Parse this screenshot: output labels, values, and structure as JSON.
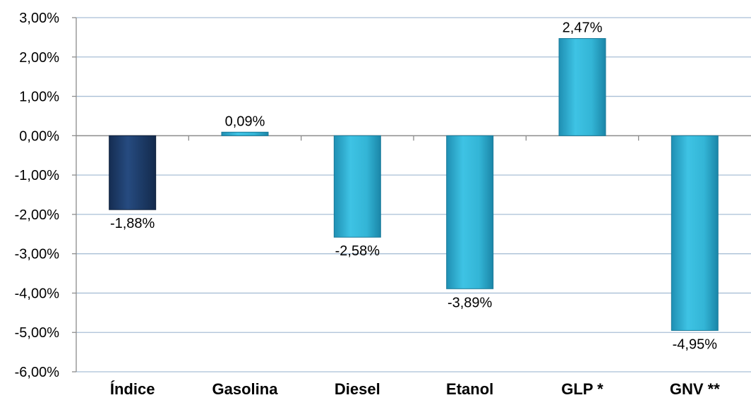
{
  "chart_data": {
    "type": "bar",
    "title": "",
    "xlabel": "",
    "ylabel": "",
    "categories": [
      "Índice",
      "Gasolina",
      "Diesel",
      "Etanol",
      "GLP *",
      "GNV **"
    ],
    "values": [
      -1.88,
      0.09,
      -2.58,
      -3.89,
      2.47,
      -4.95
    ],
    "data_labels": [
      "-1,88%",
      "0,09%",
      "-2,58%",
      "-3,89%",
      "2,47%",
      "-4,95%"
    ],
    "ylim": [
      -6,
      3
    ],
    "y_ticks": [
      {
        "value": 3,
        "label": "3,00%"
      },
      {
        "value": 2,
        "label": "2,00%"
      },
      {
        "value": 1,
        "label": "1,00%"
      },
      {
        "value": 0,
        "label": "0,00%"
      },
      {
        "value": -1,
        "label": "-1,00%"
      },
      {
        "value": -2,
        "label": "-2,00%"
      },
      {
        "value": -3,
        "label": "-3,00%"
      },
      {
        "value": -4,
        "label": "-4,00%"
      },
      {
        "value": -5,
        "label": "-5,00%"
      },
      {
        "value": -6,
        "label": "-6,00%"
      }
    ],
    "grid": true,
    "legend": "none",
    "colors": {
      "highlight_bar": "#1f3f6e",
      "bar": "#33b5d6",
      "grid": "#a9bfd6",
      "axis": "#8c8c8c"
    },
    "highlight_index": 0
  }
}
